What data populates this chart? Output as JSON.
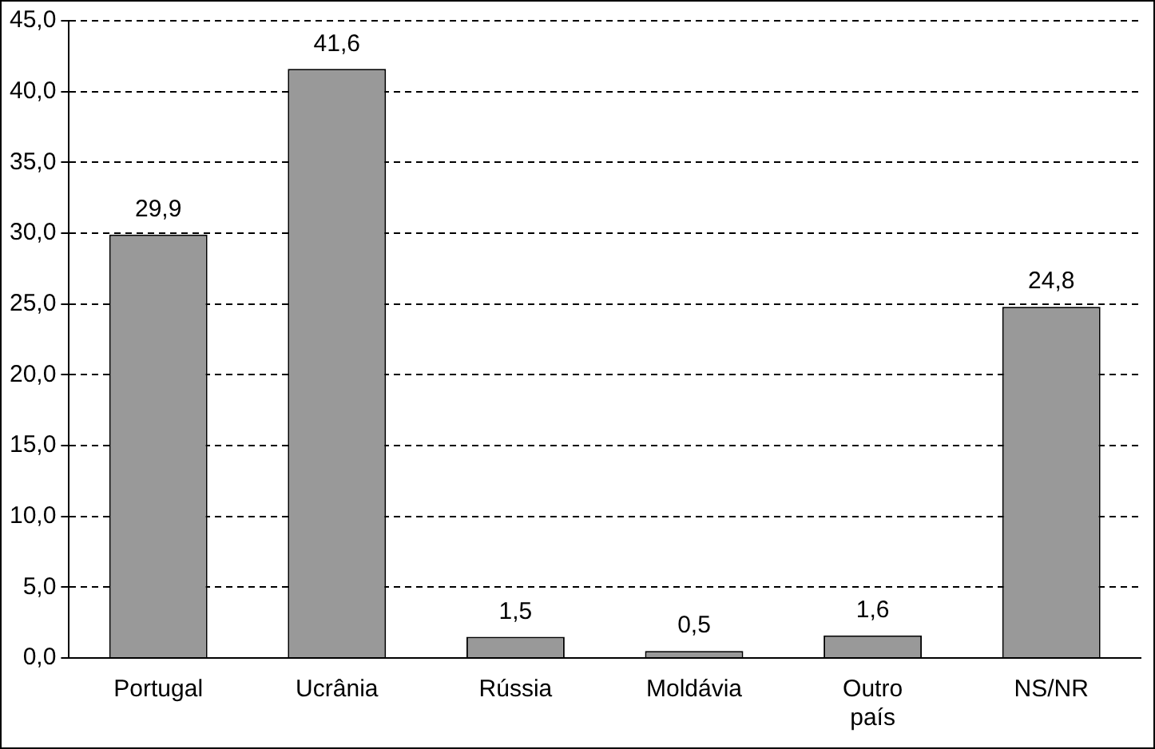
{
  "chart_data": {
    "type": "bar",
    "categories": [
      "Portugal",
      "Ucrânia",
      "Rússia",
      "Moldávia",
      "Outro país",
      "NS/NR"
    ],
    "values": [
      29.9,
      41.6,
      1.5,
      0.5,
      1.6,
      24.8
    ],
    "value_labels": [
      "29,9",
      "41,6",
      "1,5",
      "0,5",
      "1,6",
      "24,8"
    ],
    "color": "#999999",
    "ylim": [
      0,
      45
    ],
    "yticks": [
      {
        "value": 0,
        "label": "0,0"
      },
      {
        "value": 5,
        "label": "5,0"
      },
      {
        "value": 10,
        "label": "10,0"
      },
      {
        "value": 15,
        "label": "15,0"
      },
      {
        "value": 20,
        "label": "20,0"
      },
      {
        "value": 25,
        "label": "25,0"
      },
      {
        "value": 30,
        "label": "30,0"
      },
      {
        "value": 35,
        "label": "35,0"
      },
      {
        "value": 40,
        "label": "40,0"
      },
      {
        "value": 45,
        "label": "45,0"
      }
    ],
    "grid": "y",
    "legend": false
  }
}
